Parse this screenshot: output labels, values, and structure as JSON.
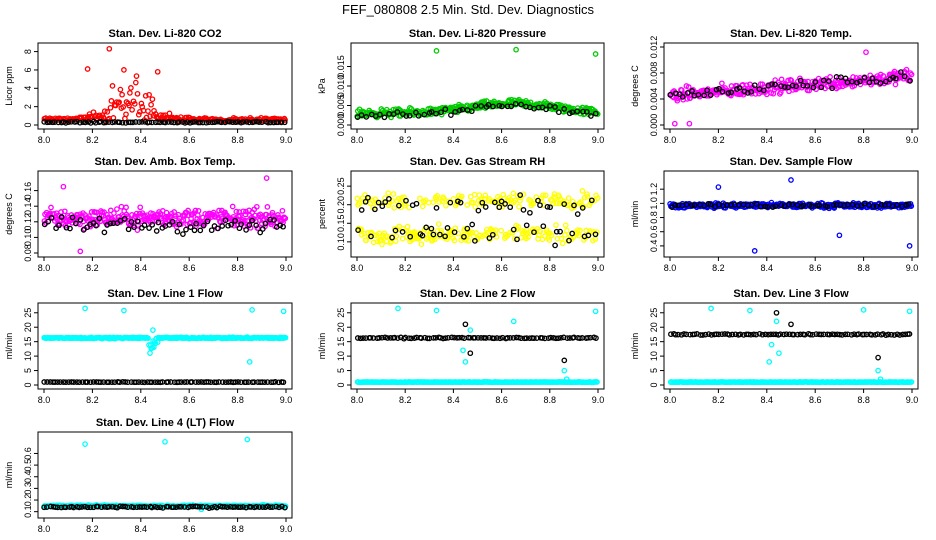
{
  "title": "FEF_080808  2.5 Min. Std. Dev. Diagnostics",
  "colors": {
    "black": "#000000",
    "red": "#ff0000",
    "green": "#00cc00",
    "magenta": "#ff00ff",
    "yellow": "#ffff00",
    "blue": "#0000ff",
    "cyan": "#00ffff"
  },
  "chart_data": [
    {
      "type": "scatter",
      "title": "Stan. Dev. Li-820 CO2",
      "ylabel": "Licor ppm",
      "xlim": [
        8.0,
        9.0
      ],
      "ylim": [
        0,
        8.5
      ],
      "xticks": [
        "8.0",
        "8.2",
        "8.4",
        "8.6",
        "8.8",
        "9.0"
      ],
      "yticks": [
        "0",
        "2",
        "4",
        "6",
        "8"
      ],
      "series": [
        {
          "name": "primary",
          "color": "red",
          "pattern": "peak",
          "base": 0.6,
          "spread": 0.3,
          "peak_center": 8.35,
          "peak_width": 0.12,
          "peak_amp": 5.5,
          "n": 220,
          "outliers": [
            [
              8.27,
              8.3
            ],
            [
              8.33,
              6.0
            ],
            [
              8.47,
              5.8
            ],
            [
              8.18,
              6.1
            ]
          ]
        },
        {
          "name": "secondary",
          "color": "black",
          "pattern": "flat",
          "base": 0.3,
          "spread": 0.1,
          "n": 90
        }
      ]
    },
    {
      "type": "scatter",
      "title": "Stan. Dev. Li-820 Pressure",
      "ylabel": "kPa",
      "xlim": [
        8.0,
        9.0
      ],
      "ylim": [
        0,
        0.02
      ],
      "xticks": [
        "8.0",
        "8.2",
        "8.4",
        "8.6",
        "8.8",
        "9.0"
      ],
      "yticks": [
        "0.000",
        "0.005",
        "0.010",
        "0.015"
      ],
      "series": [
        {
          "name": "primary",
          "color": "green",
          "pattern": "hump",
          "base": 0.003,
          "spread": 0.0015,
          "hump_center": 8.65,
          "hump_width": 0.25,
          "hump_amp": 0.0025,
          "n": 320,
          "outliers": [
            [
              8.33,
              0.019
            ],
            [
              8.66,
              0.0193
            ],
            [
              8.99,
              0.0182
            ]
          ]
        },
        {
          "name": "secondary",
          "color": "black",
          "pattern": "hump",
          "base": 0.0025,
          "spread": 0.0012,
          "hump_center": 8.65,
          "hump_width": 0.25,
          "hump_amp": 0.0025,
          "n": 55
        }
      ]
    },
    {
      "type": "scatter",
      "title": "Stan. Dev. Li-820 Temp.",
      "ylabel": "degrees C",
      "xlim": [
        8.0,
        9.0
      ],
      "ylim": [
        0,
        0.012
      ],
      "xticks": [
        "8.0",
        "8.2",
        "8.4",
        "8.6",
        "8.8",
        "9.0"
      ],
      "yticks": [
        "0.000",
        "0.004",
        "0.008",
        "0.012"
      ],
      "series": [
        {
          "name": "primary",
          "color": "magenta",
          "pattern": "ramp",
          "base": 0.0045,
          "slope": 0.003,
          "spread": 0.0015,
          "n": 300,
          "outliers": [
            [
              8.02,
              0.0002
            ],
            [
              8.08,
              0.0002
            ],
            [
              8.81,
              0.0112
            ]
          ]
        },
        {
          "name": "secondary",
          "color": "black",
          "pattern": "ramp",
          "base": 0.0045,
          "slope": 0.003,
          "spread": 0.0013,
          "n": 60
        }
      ]
    },
    {
      "type": "scatter",
      "title": "Stan. Dev. Amb. Box Temp.",
      "ylabel": "degrees C",
      "xlim": [
        8.0,
        9.0
      ],
      "ylim": [
        0.08,
        0.18
      ],
      "xticks": [
        "8.0",
        "8.2",
        "8.4",
        "8.6",
        "8.8",
        "9.0"
      ],
      "yticks": [
        "0.08",
        "0.10",
        "0.12",
        "0.14",
        "0.16"
      ],
      "series": [
        {
          "name": "primary",
          "color": "magenta",
          "pattern": "flat",
          "base": 0.125,
          "spread": 0.018,
          "n": 320,
          "outliers": [
            [
              8.08,
              0.165
            ],
            [
              8.15,
              0.082
            ],
            [
              8.92,
              0.176
            ]
          ]
        },
        {
          "name": "secondary",
          "color": "black",
          "pattern": "flat",
          "base": 0.115,
          "spread": 0.015,
          "n": 70
        }
      ]
    },
    {
      "type": "scatter",
      "title": "Stan. Dev. Gas Stream RH",
      "ylabel": "percent",
      "xlim": [
        8.0,
        9.0
      ],
      "ylim": [
        0.07,
        0.28
      ],
      "xticks": [
        "8.0",
        "8.2",
        "8.4",
        "8.6",
        "8.8",
        "9.0"
      ],
      "yticks": [
        "0.10",
        "0.15",
        "0.20",
        "0.25"
      ],
      "series": [
        {
          "name": "primary",
          "color": "yellow",
          "pattern": "bimodal",
          "base": 0.12,
          "alt": 0.21,
          "spread": 0.015,
          "n": 320
        },
        {
          "name": "secondary",
          "color": "black",
          "pattern": "bimodal",
          "base": 0.12,
          "alt": 0.2,
          "spread": 0.015,
          "n": 70
        }
      ]
    },
    {
      "type": "scatter",
      "title": "Stan. Dev. Sample Flow",
      "ylabel": "ml/min",
      "xlim": [
        8.0,
        9.0
      ],
      "ylim": [
        0.3,
        1.4
      ],
      "xticks": [
        "8.0",
        "8.2",
        "8.4",
        "8.6",
        "8.8",
        "9.0"
      ],
      "yticks": [
        "0.4",
        "0.6",
        "0.8",
        "1.0",
        "1.2"
      ],
      "series": [
        {
          "name": "primary",
          "color": "blue",
          "pattern": "flat",
          "base": 0.97,
          "spread": 0.05,
          "n": 320,
          "outliers": [
            [
              8.35,
              0.33
            ],
            [
              8.99,
              0.4
            ],
            [
              8.7,
              0.55
            ],
            [
              8.5,
              1.33
            ],
            [
              8.2,
              1.23
            ]
          ]
        },
        {
          "name": "secondary",
          "color": "black",
          "pattern": "flat",
          "base": 0.97,
          "spread": 0.04,
          "n": 60
        }
      ]
    },
    {
      "type": "scatter",
      "title": "Stan. Dev. Line 1 Flow",
      "ylabel": "ml/min",
      "xlim": [
        8.0,
        9.0
      ],
      "ylim": [
        0,
        27
      ],
      "xticks": [
        "8.0",
        "8.2",
        "8.4",
        "8.6",
        "8.8",
        "9.0"
      ],
      "yticks": [
        "0",
        "5",
        "10",
        "15",
        "20",
        "25"
      ],
      "series": [
        {
          "name": "primary",
          "color": "cyan",
          "pattern": "flat_dip",
          "base": 16.3,
          "spread": 0.3,
          "dip_center": 8.45,
          "n": 280,
          "outliers": [
            [
              8.17,
              26.5
            ],
            [
              8.33,
              25.8
            ],
            [
              8.86,
              26
            ],
            [
              8.99,
              25.5
            ],
            [
              8.85,
              8
            ],
            [
              8.45,
              19
            ]
          ]
        },
        {
          "name": "secondary",
          "color": "black",
          "pattern": "flat",
          "base": 1.0,
          "spread": 0.1,
          "n": 90
        }
      ]
    },
    {
      "type": "scatter",
      "title": "Stan. Dev. Line 2 Flow",
      "ylabel": "ml/min",
      "xlim": [
        8.0,
        9.0
      ],
      "ylim": [
        0,
        27
      ],
      "xticks": [
        "8.0",
        "8.2",
        "8.4",
        "8.6",
        "8.8",
        "9.0"
      ],
      "yticks": [
        "0",
        "5",
        "10",
        "15",
        "20",
        "25"
      ],
      "series": [
        {
          "name": "primary",
          "color": "cyan",
          "pattern": "flat",
          "base": 1.0,
          "spread": 0.1,
          "n": 200,
          "outliers": [
            [
              8.17,
              26.5
            ],
            [
              8.33,
              25.8
            ],
            [
              8.47,
              19
            ],
            [
              8.44,
              12
            ],
            [
              8.45,
              8
            ],
            [
              8.86,
              5
            ],
            [
              8.87,
              2
            ],
            [
              8.99,
              25.5
            ],
            [
              8.65,
              22
            ]
          ]
        },
        {
          "name": "secondary",
          "color": "black",
          "pattern": "flat",
          "base": 16.3,
          "spread": 0.3,
          "n": 90,
          "outliers": [
            [
              8.45,
              21
            ],
            [
              8.86,
              8.5
            ],
            [
              8.47,
              11
            ]
          ]
        }
      ]
    },
    {
      "type": "scatter",
      "title": "Stan. Dev. Line 3 Flow",
      "ylabel": "ml/min",
      "xlim": [
        8.0,
        9.0
      ],
      "ylim": [
        0,
        27
      ],
      "xticks": [
        "8.0",
        "8.2",
        "8.4",
        "8.6",
        "8.8",
        "9.0"
      ],
      "yticks": [
        "0",
        "5",
        "10",
        "15",
        "20",
        "25"
      ],
      "series": [
        {
          "name": "primary",
          "color": "cyan",
          "pattern": "flat",
          "base": 1.0,
          "spread": 0.1,
          "n": 200,
          "outliers": [
            [
              8.17,
              26.5
            ],
            [
              8.33,
              25.8
            ],
            [
              8.44,
              22
            ],
            [
              8.42,
              14
            ],
            [
              8.41,
              8
            ],
            [
              8.45,
              11
            ],
            [
              8.86,
              5
            ],
            [
              8.87,
              2
            ],
            [
              8.99,
              25.5
            ],
            [
              8.8,
              26
            ]
          ]
        },
        {
          "name": "secondary",
          "color": "black",
          "pattern": "flat",
          "base": 17.5,
          "spread": 0.3,
          "n": 90,
          "outliers": [
            [
              8.44,
              25
            ],
            [
              8.86,
              9.5
            ],
            [
              8.5,
              21
            ]
          ]
        }
      ]
    },
    {
      "type": "scatter",
      "title": "Stan. Dev. Line 4 (LT) Flow",
      "ylabel": "ml/min",
      "xlim": [
        8.0,
        9.0
      ],
      "ylim": [
        0.08,
        0.75
      ],
      "xticks": [
        "8.0",
        "8.2",
        "8.4",
        "8.6",
        "8.8",
        "9.0"
      ],
      "yticks": [
        "0.1",
        "0.2",
        "0.3",
        "0.4",
        "0.5",
        "0.6"
      ],
      "series": [
        {
          "name": "primary",
          "color": "cyan",
          "pattern": "flat",
          "base": 0.15,
          "spread": 0.01,
          "n": 280,
          "outliers": [
            [
              8.17,
              0.68
            ],
            [
              8.5,
              0.7
            ],
            [
              8.84,
              0.72
            ],
            [
              8.65,
              0.12
            ]
          ]
        },
        {
          "name": "secondary",
          "color": "black",
          "pattern": "flat",
          "base": 0.14,
          "spread": 0.01,
          "n": 90
        }
      ]
    }
  ]
}
